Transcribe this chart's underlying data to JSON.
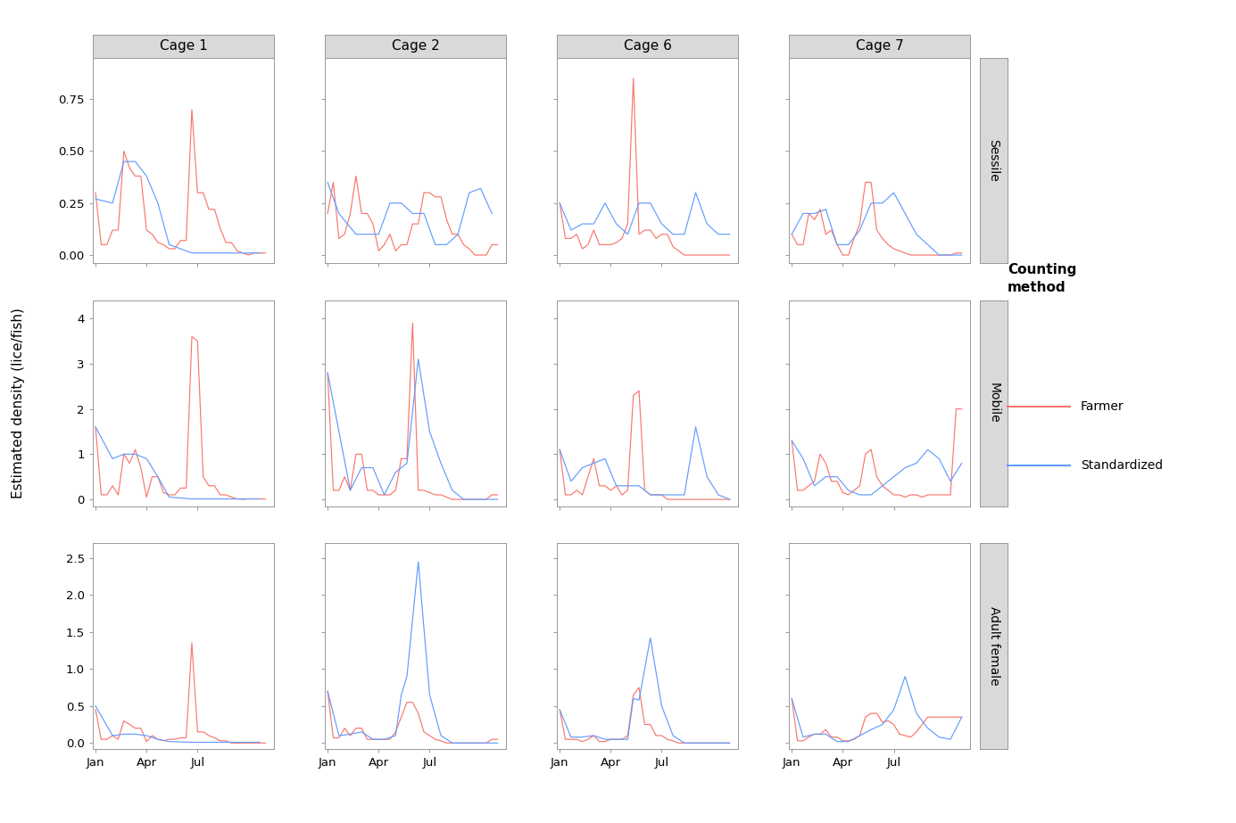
{
  "cages": [
    "Cage 1",
    "Cage 2",
    "Cage 6",
    "Cage 7"
  ],
  "stages": [
    "Sessile",
    "Mobile",
    "Adult female"
  ],
  "farmer_color": "#F8766D",
  "std_color": "#619CFF",
  "ylabel": "Estimated density (lice/fish)",
  "legend_title": "Counting\nmethod",
  "legend_farmer": "Farmer",
  "legend_std": "Standardized",
  "sessile": {
    "ylim": [
      -0.04,
      0.95
    ],
    "yticks": [
      0.0,
      0.25,
      0.5,
      0.75
    ],
    "cage1": {
      "farmer_x": [
        0,
        1,
        2,
        3,
        4,
        5,
        6,
        7,
        8,
        9,
        10,
        11,
        12,
        13,
        14,
        15,
        16,
        17,
        18,
        19,
        20,
        21,
        22,
        23,
        24,
        25,
        26,
        27,
        28,
        29,
        30
      ],
      "farmer": [
        0.3,
        0.05,
        0.05,
        0.12,
        0.12,
        0.5,
        0.42,
        0.38,
        0.38,
        0.12,
        0.1,
        0.06,
        0.05,
        0.03,
        0.03,
        0.07,
        0.07,
        0.7,
        0.3,
        0.3,
        0.22,
        0.22,
        0.13,
        0.06,
        0.06,
        0.02,
        0.01,
        0.0,
        0.01,
        0.01,
        0.01
      ],
      "std_x": [
        0,
        3,
        5,
        7,
        9,
        11,
        13,
        17,
        21,
        25,
        29
      ],
      "std": [
        0.27,
        0.25,
        0.45,
        0.45,
        0.38,
        0.25,
        0.05,
        0.01,
        0.01,
        0.01,
        0.01
      ]
    },
    "cage2": {
      "farmer_x": [
        0,
        1,
        2,
        3,
        4,
        5,
        6,
        7,
        8,
        9,
        10,
        11,
        12,
        13,
        14,
        15,
        16,
        17,
        18,
        19,
        20,
        21,
        22,
        23,
        24,
        25,
        26,
        27,
        28,
        29,
        30
      ],
      "farmer": [
        0.2,
        0.35,
        0.08,
        0.1,
        0.2,
        0.38,
        0.2,
        0.2,
        0.15,
        0.02,
        0.05,
        0.1,
        0.02,
        0.05,
        0.05,
        0.15,
        0.15,
        0.3,
        0.3,
        0.28,
        0.28,
        0.17,
        0.1,
        0.1,
        0.05,
        0.03,
        0.0,
        0.0,
        0.0,
        0.05,
        0.05
      ],
      "std_x": [
        0,
        2,
        5,
        7,
        9,
        11,
        13,
        15,
        17,
        19,
        21,
        23,
        25,
        27,
        29
      ],
      "std": [
        0.35,
        0.2,
        0.1,
        0.1,
        0.1,
        0.25,
        0.25,
        0.2,
        0.2,
        0.05,
        0.05,
        0.1,
        0.3,
        0.32,
        0.2
      ]
    },
    "cage6": {
      "farmer_x": [
        0,
        1,
        2,
        3,
        4,
        5,
        6,
        7,
        8,
        9,
        10,
        11,
        12,
        13,
        14,
        15,
        16,
        17,
        18,
        19,
        20,
        21,
        22,
        23,
        24,
        25,
        26,
        27,
        28,
        29,
        30
      ],
      "farmer": [
        0.25,
        0.08,
        0.08,
        0.1,
        0.03,
        0.05,
        0.12,
        0.05,
        0.05,
        0.05,
        0.06,
        0.08,
        0.15,
        0.85,
        0.1,
        0.12,
        0.12,
        0.08,
        0.1,
        0.1,
        0.04,
        0.02,
        0.0,
        0.0,
        0.0,
        0.0,
        0.0,
        0.0,
        0.0,
        0.0,
        0.0
      ],
      "std_x": [
        0,
        2,
        4,
        6,
        8,
        10,
        12,
        14,
        16,
        18,
        20,
        22,
        24,
        26,
        28,
        30
      ],
      "std": [
        0.25,
        0.12,
        0.15,
        0.15,
        0.25,
        0.15,
        0.1,
        0.25,
        0.25,
        0.15,
        0.1,
        0.1,
        0.3,
        0.15,
        0.1,
        0.1
      ]
    },
    "cage7": {
      "farmer_x": [
        0,
        1,
        2,
        3,
        4,
        5,
        6,
        7,
        8,
        9,
        10,
        11,
        12,
        13,
        14,
        15,
        16,
        17,
        18,
        19,
        20,
        21,
        22,
        23,
        24,
        25,
        26,
        27,
        28,
        29,
        30
      ],
      "farmer": [
        0.1,
        0.05,
        0.05,
        0.2,
        0.17,
        0.22,
        0.1,
        0.12,
        0.05,
        0.0,
        0.0,
        0.08,
        0.15,
        0.35,
        0.35,
        0.12,
        0.08,
        0.05,
        0.03,
        0.02,
        0.01,
        0.0,
        0.0,
        0.0,
        0.0,
        0.0,
        0.0,
        0.0,
        0.0,
        0.01,
        0.01
      ],
      "std_x": [
        0,
        2,
        4,
        6,
        8,
        10,
        12,
        14,
        16,
        18,
        20,
        22,
        24,
        26,
        28,
        30
      ],
      "std": [
        0.1,
        0.2,
        0.2,
        0.22,
        0.05,
        0.05,
        0.12,
        0.25,
        0.25,
        0.3,
        0.2,
        0.1,
        0.05,
        0.0,
        0.0,
        0.0
      ]
    }
  },
  "mobile": {
    "ylim": [
      -0.15,
      4.4
    ],
    "yticks": [
      0,
      1,
      2,
      3,
      4
    ],
    "cage1": {
      "farmer_x": [
        0,
        1,
        2,
        3,
        4,
        5,
        6,
        7,
        8,
        9,
        10,
        11,
        12,
        13,
        14,
        15,
        16,
        17,
        18,
        19,
        20,
        21,
        22,
        23,
        24,
        25,
        26,
        27,
        28,
        29,
        30
      ],
      "farmer": [
        1.6,
        0.1,
        0.1,
        0.3,
        0.1,
        1.0,
        0.8,
        1.1,
        0.7,
        0.05,
        0.5,
        0.5,
        0.15,
        0.1,
        0.1,
        0.25,
        0.25,
        3.6,
        3.5,
        0.5,
        0.3,
        0.3,
        0.1,
        0.1,
        0.05,
        0.01,
        0.0,
        0.01,
        0.01,
        0.01,
        0.01
      ],
      "std_x": [
        0,
        3,
        5,
        7,
        9,
        11,
        13,
        17,
        21,
        25,
        29
      ],
      "std": [
        1.6,
        0.9,
        1.0,
        1.0,
        0.9,
        0.5,
        0.05,
        0.01,
        0.01,
        0.01,
        0.01
      ]
    },
    "cage2": {
      "farmer_x": [
        0,
        1,
        2,
        3,
        4,
        5,
        6,
        7,
        8,
        9,
        10,
        11,
        12,
        13,
        14,
        15,
        16,
        17,
        18,
        19,
        20,
        21,
        22,
        23,
        24,
        25,
        26,
        27,
        28,
        29,
        30
      ],
      "farmer": [
        2.8,
        0.2,
        0.2,
        0.5,
        0.2,
        1.0,
        1.0,
        0.2,
        0.2,
        0.1,
        0.1,
        0.1,
        0.2,
        0.9,
        0.9,
        3.9,
        0.2,
        0.2,
        0.15,
        0.1,
        0.1,
        0.05,
        0.0,
        0.0,
        0.0,
        0.0,
        0.0,
        0.0,
        0.0,
        0.1,
        0.1
      ],
      "std_x": [
        0,
        2,
        4,
        6,
        8,
        10,
        12,
        14,
        16,
        18,
        20,
        22,
        24,
        26,
        28,
        30
      ],
      "std": [
        2.8,
        1.5,
        0.2,
        0.7,
        0.7,
        0.1,
        0.6,
        0.8,
        3.1,
        1.5,
        0.8,
        0.2,
        0.0,
        0.0,
        0.0,
        0.0
      ]
    },
    "cage6": {
      "farmer_x": [
        0,
        1,
        2,
        3,
        4,
        5,
        6,
        7,
        8,
        9,
        10,
        11,
        12,
        13,
        14,
        15,
        16,
        17,
        18,
        19,
        20,
        21,
        22,
        23,
        24,
        25,
        26,
        27,
        28,
        29,
        30
      ],
      "farmer": [
        1.1,
        0.1,
        0.1,
        0.2,
        0.1,
        0.5,
        0.9,
        0.3,
        0.3,
        0.2,
        0.3,
        0.1,
        0.2,
        2.3,
        2.4,
        0.2,
        0.1,
        0.1,
        0.1,
        0.0,
        0.0,
        0.0,
        0.0,
        0.0,
        0.0,
        0.0,
        0.0,
        0.0,
        0.0,
        0.0,
        0.0
      ],
      "std_x": [
        0,
        2,
        4,
        6,
        8,
        10,
        12,
        14,
        16,
        18,
        20,
        22,
        24,
        26,
        28,
        30
      ],
      "std": [
        1.1,
        0.4,
        0.7,
        0.8,
        0.9,
        0.3,
        0.3,
        0.3,
        0.1,
        0.1,
        0.1,
        0.1,
        1.6,
        0.5,
        0.1,
        0.0
      ]
    },
    "cage7": {
      "farmer_x": [
        0,
        1,
        2,
        3,
        4,
        5,
        6,
        7,
        8,
        9,
        10,
        11,
        12,
        13,
        14,
        15,
        16,
        17,
        18,
        19,
        20,
        21,
        22,
        23,
        24,
        25,
        26,
        27,
        28,
        29,
        30
      ],
      "farmer": [
        1.3,
        0.2,
        0.2,
        0.3,
        0.4,
        1.0,
        0.8,
        0.4,
        0.4,
        0.15,
        0.1,
        0.2,
        0.3,
        1.0,
        1.1,
        0.5,
        0.3,
        0.2,
        0.1,
        0.1,
        0.05,
        0.1,
        0.1,
        0.05,
        0.1,
        0.1,
        0.1,
        0.1,
        0.1,
        2.0,
        2.0
      ],
      "std_x": [
        0,
        2,
        4,
        6,
        8,
        10,
        12,
        14,
        16,
        18,
        20,
        22,
        24,
        26,
        28,
        30
      ],
      "std": [
        1.3,
        0.9,
        0.3,
        0.5,
        0.5,
        0.2,
        0.1,
        0.1,
        0.3,
        0.5,
        0.7,
        0.8,
        1.1,
        0.9,
        0.4,
        0.8
      ]
    }
  },
  "adult_female": {
    "ylim": [
      -0.08,
      2.7
    ],
    "yticks": [
      0.0,
      0.5,
      1.0,
      1.5,
      2.0,
      2.5
    ],
    "cage1": {
      "farmer_x": [
        0,
        1,
        2,
        3,
        4,
        5,
        6,
        7,
        8,
        9,
        10,
        11,
        12,
        13,
        14,
        15,
        16,
        17,
        18,
        19,
        20,
        21,
        22,
        23,
        24,
        25,
        26,
        27,
        28,
        29,
        30
      ],
      "farmer": [
        0.45,
        0.05,
        0.05,
        0.1,
        0.05,
        0.3,
        0.25,
        0.2,
        0.2,
        0.02,
        0.1,
        0.05,
        0.03,
        0.05,
        0.05,
        0.07,
        0.07,
        1.35,
        0.15,
        0.15,
        0.1,
        0.07,
        0.03,
        0.03,
        0.0,
        0.0,
        0.0,
        0.0,
        0.0,
        0.0,
        0.0
      ],
      "std_x": [
        0,
        3,
        5,
        7,
        9,
        11,
        13,
        17,
        21,
        25,
        29
      ],
      "std": [
        0.5,
        0.1,
        0.12,
        0.12,
        0.1,
        0.05,
        0.02,
        0.01,
        0.01,
        0.01,
        0.01
      ]
    },
    "cage2": {
      "farmer_x": [
        0,
        1,
        2,
        3,
        4,
        5,
        6,
        7,
        8,
        9,
        10,
        11,
        12,
        13,
        14,
        15,
        16,
        17,
        18,
        19,
        20,
        21,
        22,
        23,
        24,
        25,
        26,
        27,
        28,
        29,
        30
      ],
      "farmer": [
        0.7,
        0.07,
        0.07,
        0.2,
        0.1,
        0.2,
        0.2,
        0.05,
        0.05,
        0.05,
        0.05,
        0.05,
        0.15,
        0.35,
        0.55,
        0.55,
        0.4,
        0.15,
        0.1,
        0.05,
        0.03,
        0.0,
        0.0,
        0.0,
        0.0,
        0.0,
        0.0,
        0.0,
        0.0,
        0.05,
        0.05
      ],
      "std_x": [
        0,
        2,
        4,
        6,
        8,
        10,
        12,
        13,
        14,
        16,
        18,
        20,
        22,
        24,
        26,
        28,
        30
      ],
      "std": [
        0.7,
        0.1,
        0.12,
        0.15,
        0.05,
        0.05,
        0.1,
        0.65,
        0.9,
        2.45,
        0.65,
        0.1,
        0.0,
        0.0,
        0.0,
        0.0,
        0.0
      ]
    },
    "cage6": {
      "farmer_x": [
        0,
        1,
        2,
        3,
        4,
        5,
        6,
        7,
        8,
        9,
        10,
        11,
        12,
        13,
        14,
        15,
        16,
        17,
        18,
        19,
        20,
        21,
        22,
        23,
        24,
        25,
        26,
        27,
        28,
        29,
        30
      ],
      "farmer": [
        0.45,
        0.05,
        0.05,
        0.05,
        0.02,
        0.05,
        0.1,
        0.02,
        0.02,
        0.05,
        0.05,
        0.05,
        0.1,
        0.65,
        0.75,
        0.25,
        0.25,
        0.1,
        0.1,
        0.05,
        0.03,
        0.0,
        0.0,
        0.0,
        0.0,
        0.0,
        0.0,
        0.0,
        0.0,
        0.0,
        0.0
      ],
      "std_x": [
        0,
        2,
        4,
        6,
        8,
        10,
        12,
        13,
        14,
        16,
        18,
        20,
        22,
        24,
        26,
        28,
        30
      ],
      "std": [
        0.45,
        0.08,
        0.08,
        0.1,
        0.05,
        0.05,
        0.05,
        0.6,
        0.58,
        1.42,
        0.5,
        0.1,
        0.0,
        0.0,
        0.0,
        0.0,
        0.0
      ]
    },
    "cage7": {
      "farmer_x": [
        0,
        1,
        2,
        3,
        4,
        5,
        6,
        7,
        8,
        9,
        10,
        11,
        12,
        13,
        14,
        15,
        16,
        17,
        18,
        19,
        20,
        21,
        22,
        23,
        24,
        25,
        26,
        27,
        28,
        29,
        30
      ],
      "farmer": [
        0.6,
        0.03,
        0.03,
        0.08,
        0.12,
        0.12,
        0.18,
        0.08,
        0.08,
        0.03,
        0.03,
        0.05,
        0.1,
        0.35,
        0.4,
        0.4,
        0.28,
        0.3,
        0.25,
        0.12,
        0.1,
        0.08,
        0.15,
        0.25,
        0.35,
        0.35,
        0.35,
        0.35,
        0.35,
        0.35,
        0.35
      ],
      "std_x": [
        0,
        2,
        4,
        6,
        8,
        10,
        12,
        14,
        16,
        18,
        20,
        22,
        24,
        26,
        28,
        30
      ],
      "std": [
        0.6,
        0.08,
        0.12,
        0.12,
        0.02,
        0.02,
        0.1,
        0.18,
        0.25,
        0.45,
        0.9,
        0.4,
        0.2,
        0.08,
        0.05,
        0.35
      ]
    }
  }
}
